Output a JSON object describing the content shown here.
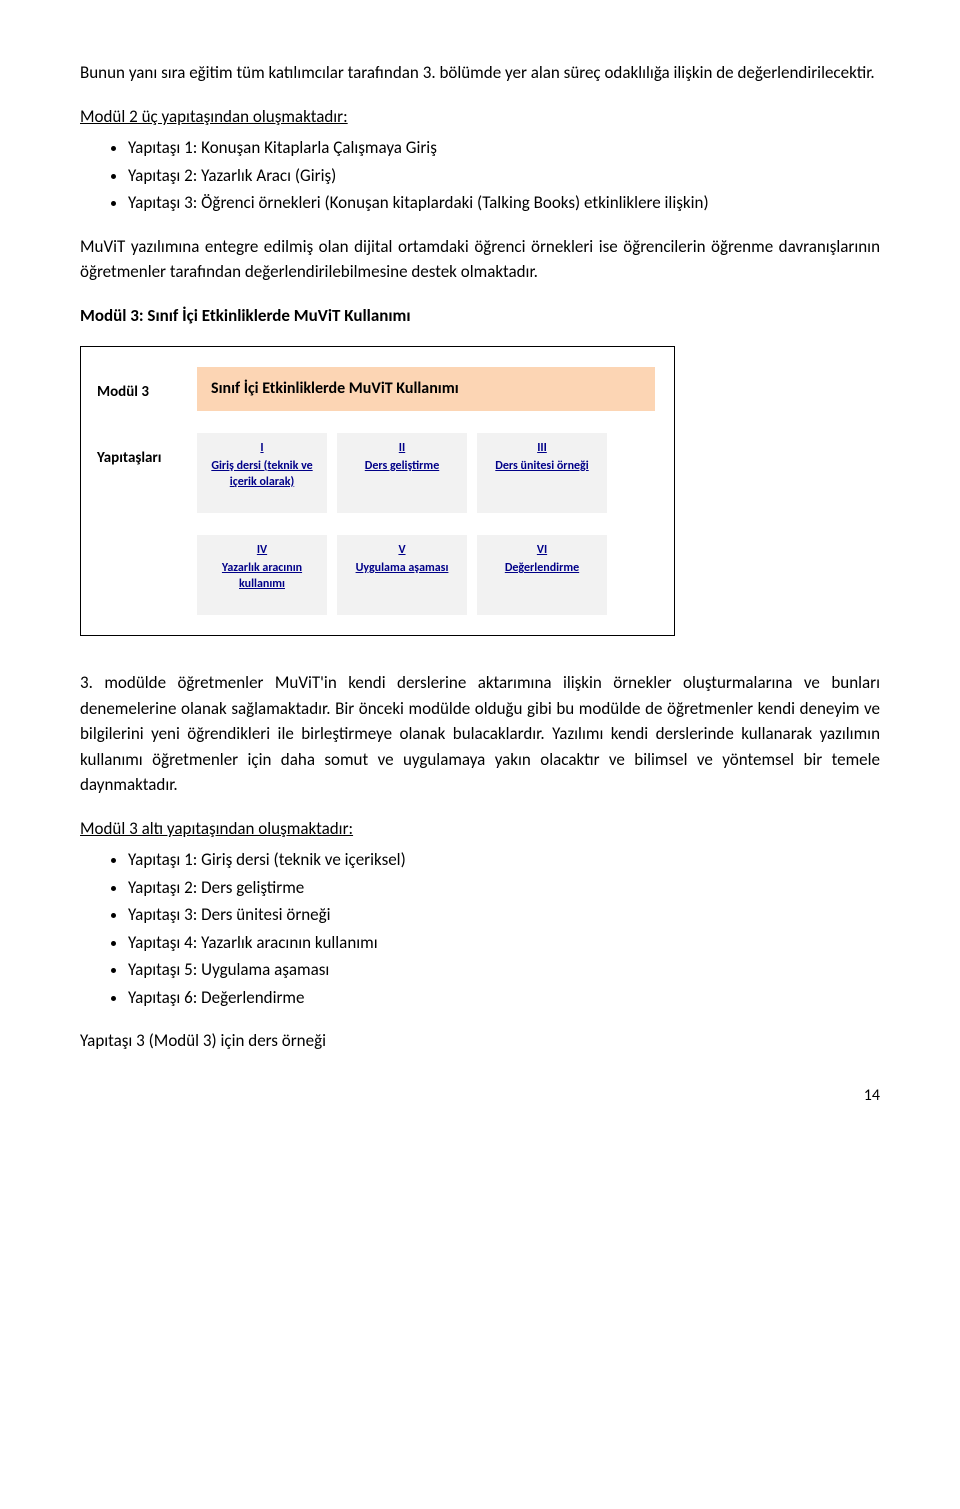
{
  "intro_para": "Bunun yanı sıra eğitim tüm katılımcılar tarafından 3. bölümde yer alan süreç odaklılığa ilişkin de değerlendirilecektir.",
  "module2_heading": "Modül 2 üç yapıtaşından oluşmaktadır:",
  "module2_items": [
    "Yapıtaşı 1: Konuşan Kitaplarla Çalışmaya Giriş",
    "Yapıtaşı 2: Yazarlık Aracı (Giriş)",
    "Yapıtaşı 3: Öğrenci örnekleri (Konuşan kitaplardaki (Talking Books) etkinliklere ilişkin)"
  ],
  "after_module2_para": "MuViT yazılımına entegre edilmiş olan dijital ortamdaki öğrenci örnekleri ise öğrencilerin öğrenme davranışlarının öğretmenler tarafından değerlendirilebilmesine destek olmaktadır.",
  "module3_bold": "Modül 3: Sınıf İçi Etkinliklerde MuViT Kullanımı",
  "diagram": {
    "label_module": "Modül 3",
    "title_banner": "Sınıf İçi Etkinliklerde MuViT Kullanımı",
    "label_parts": "Yapıtaşları",
    "row1": [
      {
        "roman": "I",
        "caption": "Giriş dersi (teknik ve içerik olarak)"
      },
      {
        "roman": "II",
        "caption": "Ders geliştirme"
      },
      {
        "roman": "III",
        "caption": "Ders ünitesi örneği"
      }
    ],
    "row2": [
      {
        "roman": "IV",
        "caption": "Yazarlık aracının kullanımı"
      },
      {
        "roman": "V",
        "caption": "Uygulama aşaması"
      },
      {
        "roman": "VI",
        "caption": "Değerlendirme"
      }
    ]
  },
  "module3_para": "3. modülde öğretmenler MuViT'in kendi derslerine aktarımına ilişkin örnekler oluşturmalarına ve bunları denemelerine olanak sağlamaktadır. Bir önceki modülde olduğu gibi bu modülde de öğretmenler kendi deneyim ve bilgilerini yeni öğrendikleri ile birleştirmeye olanak bulacaklardır. Yazılımı kendi derslerinde kullanarak yazılımın kullanımı öğretmenler için daha somut ve uygulamaya yakın olacaktır ve bilimsel ve yöntemsel bir temele daynmaktadır.",
  "module3_list_heading": "Modül 3 altı yapıtaşından oluşmaktadır:",
  "module3_items": [
    "Yapıtaşı 1: Giriş dersi (teknik ve içeriksel)",
    "Yapıtaşı 2: Ders geliştirme",
    "Yapıtaşı 3: Ders ünitesi örneği",
    "Yapıtaşı 4: Yazarlık aracının kullanımı",
    "Yapıtaşı 5: Uygulama aşaması",
    "Yapıtaşı 6: Değerlendirme"
  ],
  "closing_line": "Yapıtaşı 3 (Modül 3) için ders örneği",
  "page_number": "14"
}
